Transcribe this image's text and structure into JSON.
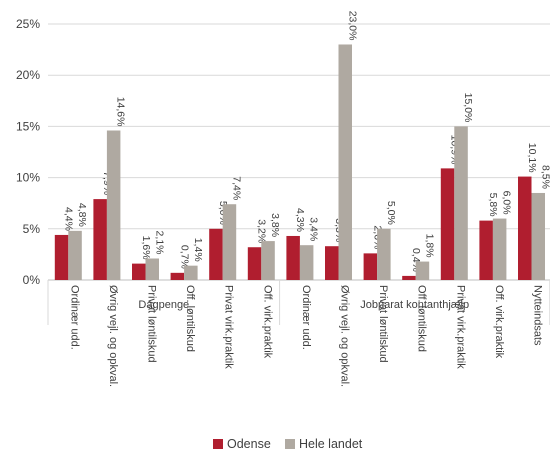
{
  "chart_data": {
    "type": "bar",
    "title": "",
    "xlabel": "",
    "ylabel": "",
    "ylim": [
      0,
      25
    ],
    "yticks": [
      "0%",
      "5%",
      "10%",
      "15%",
      "20%",
      "25%"
    ],
    "y_unit": "%",
    "grid": true,
    "legend_position": "bottom",
    "groups": [
      {
        "label": "Dagpenge",
        "categories": [
          "Ordinær udd.",
          "Øvrig vejl. og opkval.",
          "Privat løntilskud",
          "Off. løntilskud",
          "Privat virk.praktik",
          "Off. virk.praktik"
        ]
      },
      {
        "label": "Jobparat kontanthjælp",
        "categories": [
          "Ordinær udd.",
          "Øvrig vejl. og opkval.",
          "Privat løntilskud",
          "Off. løntilskud",
          "Privat virk.praktik",
          "Off. virk.praktik",
          "Nytteindsats"
        ]
      }
    ],
    "series": [
      {
        "name": "Odense",
        "color": "#B01E2F",
        "values": [
          4.4,
          7.9,
          1.6,
          0.7,
          5.0,
          3.2,
          4.3,
          3.3,
          2.6,
          0.4,
          10.9,
          5.8,
          10.1
        ],
        "labels": [
          "4,4%",
          "7,9%",
          "1,6%",
          "0,7%",
          "5,0%",
          "3,2%",
          "4,3%",
          "3,3%",
          "2,6%",
          "0,4%",
          "10,9%",
          "5,8%",
          "10,1%"
        ]
      },
      {
        "name": "Hele landet",
        "color": "#AFA9A1",
        "values": [
          4.8,
          14.6,
          2.1,
          1.4,
          7.4,
          3.8,
          3.4,
          23.0,
          5.0,
          1.8,
          15.0,
          6.0,
          8.5
        ],
        "labels": [
          "4,8%",
          "14,6%",
          "2,1%",
          "1,4%",
          "7,4%",
          "3,8%",
          "3,4%",
          "23,0%",
          "5,0%",
          "1,8%",
          "15,0%",
          "6,0%",
          "8,5%"
        ]
      }
    ]
  }
}
